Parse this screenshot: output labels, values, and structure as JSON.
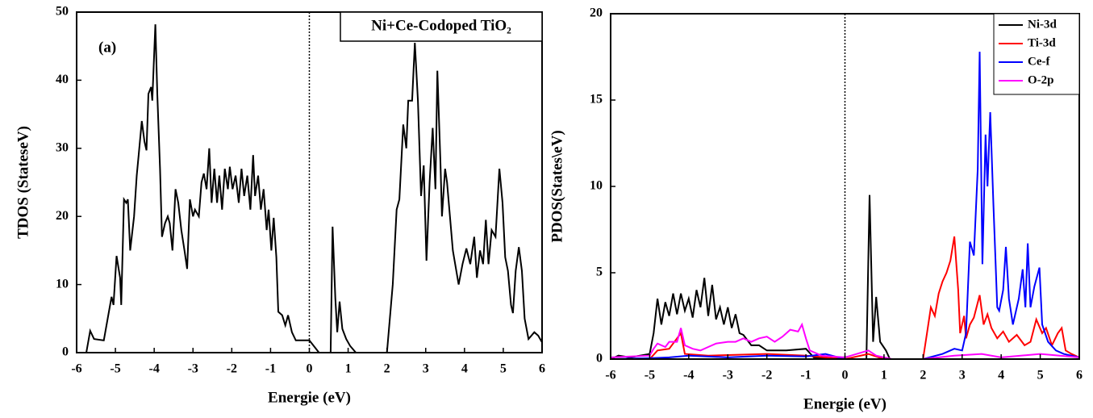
{
  "chart_data": [
    {
      "type": "line",
      "title": "Ni+Ce-Codoped TiO₂",
      "annotation": "(a)",
      "xlabel": "Energie (eV)",
      "ylabel": "TDOS (StateseV)",
      "xlim": [
        -6,
        6
      ],
      "xticks": [
        -6,
        -5,
        -4,
        -3,
        -2,
        -1,
        0,
        1,
        2,
        3,
        4,
        5,
        6
      ],
      "ylim": [
        0,
        50
      ],
      "yticks": [
        0,
        10,
        20,
        30,
        40,
        50
      ],
      "vline": 0,
      "series": [
        {
          "color": "#000000",
          "x": [
            -5.75,
            -5.65,
            -5.55,
            -5.3,
            -5.2,
            -5.1,
            -5.05,
            -4.97,
            -4.88,
            -4.85,
            -4.78,
            -4.72,
            -4.68,
            -4.62,
            -4.52,
            -4.45,
            -4.4,
            -4.32,
            -4.25,
            -4.2,
            -4.15,
            -4.08,
            -4.05,
            -3.97,
            -3.92,
            -3.85,
            -3.8,
            -3.72,
            -3.65,
            -3.6,
            -3.53,
            -3.45,
            -3.38,
            -3.3,
            -3.22,
            -3.15,
            -3.08,
            -3.0,
            -2.95,
            -2.85,
            -2.78,
            -2.72,
            -2.65,
            -2.58,
            -2.52,
            -2.45,
            -2.38,
            -2.32,
            -2.25,
            -2.18,
            -2.1,
            -2.05,
            -1.98,
            -1.9,
            -1.82,
            -1.75,
            -1.68,
            -1.6,
            -1.52,
            -1.45,
            -1.4,
            -1.32,
            -1.25,
            -1.18,
            -1.1,
            -1.05,
            -0.98,
            -0.92,
            -0.85,
            -0.8,
            -0.7,
            -0.62,
            -0.55,
            -0.45,
            -0.35,
            -0.2,
            0.0,
            0.25,
            0.55,
            0.6,
            0.67,
            0.72,
            0.78,
            0.85,
            0.95,
            1.05,
            1.2,
            2.0,
            2.15,
            2.25,
            2.32,
            2.42,
            2.5,
            2.55,
            2.65,
            2.72,
            2.8,
            2.88,
            2.95,
            3.02,
            3.1,
            3.18,
            3.25,
            3.3,
            3.38,
            3.42,
            3.5,
            3.55,
            3.7,
            3.85,
            3.95,
            4.05,
            4.15,
            4.25,
            4.32,
            4.4,
            4.48,
            4.55,
            4.62,
            4.7,
            4.8,
            4.9,
            4.98,
            5.05,
            5.12,
            5.2,
            5.25,
            5.32,
            5.4,
            5.48,
            5.55,
            5.65,
            5.8,
            5.9,
            6.0
          ],
          "values": [
            0,
            3.2,
            2,
            1.8,
            5,
            8.2,
            7,
            14.2,
            11,
            7,
            22.5,
            22,
            22.5,
            15,
            20,
            26,
            29,
            34,
            31,
            29.7,
            38,
            39,
            37,
            48.2,
            38,
            27,
            17,
            19,
            20,
            19,
            15,
            24,
            22,
            18,
            15,
            12.3,
            22.5,
            20,
            21,
            20,
            25,
            26.3,
            24,
            30,
            22,
            27,
            22,
            26,
            21,
            27,
            24,
            27.3,
            24,
            26,
            22,
            27,
            23,
            26,
            21,
            29,
            23,
            26,
            21,
            24,
            18,
            21,
            15,
            19.8,
            14,
            6,
            5.5,
            4,
            5.5,
            3,
            1.8,
            1.8,
            1.8,
            0,
            0,
            18.5,
            8,
            3,
            7.5,
            3.5,
            2,
            1,
            0,
            0,
            10,
            21,
            22.5,
            33.5,
            30,
            37,
            37,
            45.5,
            37,
            23,
            27.5,
            13.5,
            25,
            33,
            24,
            41.4,
            28,
            20,
            27,
            25,
            15,
            10,
            13,
            15.3,
            13,
            17,
            11,
            15,
            13,
            19.5,
            13,
            18,
            17,
            27,
            22,
            14,
            12,
            7,
            5.8,
            12,
            15.5,
            12,
            5,
            2,
            3,
            2.5,
            1.5
          ]
        }
      ]
    },
    {
      "type": "line",
      "xlabel": "Energie (eV)",
      "ylabel": "PDOS(States\\eV)",
      "xlim": [
        -6,
        6
      ],
      "xticks": [
        -6,
        -5,
        -4,
        -3,
        -2,
        -1,
        0,
        1,
        2,
        3,
        4,
        5,
        6
      ],
      "ylim": [
        0,
        20
      ],
      "yticks": [
        0,
        5,
        10,
        15,
        20
      ],
      "vline": 0,
      "legend": "upper right",
      "series": [
        {
          "name": "Ni-3d",
          "color": "#000000",
          "x": [
            -6,
            -5.8,
            -5.5,
            -5.0,
            -4.9,
            -4.8,
            -4.7,
            -4.6,
            -4.5,
            -4.4,
            -4.3,
            -4.2,
            -4.1,
            -4.0,
            -3.9,
            -3.8,
            -3.7,
            -3.6,
            -3.5,
            -3.4,
            -3.3,
            -3.2,
            -3.1,
            -3.0,
            -2.9,
            -2.8,
            -2.7,
            -2.6,
            -2.4,
            -2.2,
            -2.0,
            -1.5,
            -1.0,
            -0.8,
            0,
            0.55,
            0.63,
            0.72,
            0.8,
            0.9,
            1.05,
            1.15,
            6
          ],
          "values": [
            0,
            0.2,
            0.1,
            0.3,
            1.5,
            3.5,
            2.0,
            3.3,
            2.5,
            3.8,
            2.6,
            3.8,
            2.8,
            3.5,
            2.4,
            4.0,
            3.0,
            4.7,
            2.5,
            4.3,
            2.3,
            3.0,
            2.0,
            3.0,
            1.8,
            2.6,
            1.5,
            1.4,
            0.8,
            0.8,
            0.5,
            0.5,
            0.6,
            0.1,
            0,
            0,
            9.5,
            1,
            3.6,
            1,
            0.5,
            0,
            0
          ]
        },
        {
          "name": "Ti-3d",
          "color": "#ff0000",
          "x": [
            -6,
            -5,
            -4.8,
            -4.5,
            -4.2,
            -4.1,
            -3.5,
            -2,
            -1,
            0,
            0.6,
            1,
            2.0,
            2.1,
            2.2,
            2.3,
            2.4,
            2.5,
            2.6,
            2.7,
            2.8,
            2.9,
            2.95,
            3.05,
            3.1,
            3.2,
            3.3,
            3.45,
            3.55,
            3.65,
            3.75,
            3.9,
            4.05,
            4.2,
            4.4,
            4.6,
            4.75,
            4.9,
            5.05,
            5.15,
            5.3,
            5.45,
            5.55,
            5.65,
            5.8,
            6
          ],
          "values": [
            0,
            0,
            0.5,
            0.6,
            1.5,
            0.3,
            0.2,
            0.3,
            0.2,
            0,
            0.3,
            0,
            0,
            1.5,
            3.0,
            2.5,
            3.8,
            4.5,
            5.0,
            5.7,
            7.1,
            4,
            1.5,
            2.5,
            1.2,
            2.0,
            2.4,
            3.7,
            2.0,
            2.6,
            1.8,
            1.2,
            1.6,
            1.0,
            1.4,
            0.8,
            1.0,
            2.3,
            1.5,
            1.8,
            0.8,
            1.5,
            1.8,
            0.5,
            0.3,
            0.1
          ]
        },
        {
          "name": "Ce-f",
          "color": "#0000ff",
          "x": [
            -6,
            -5,
            -4.5,
            -4,
            -3,
            -2,
            -1,
            -0.5,
            0,
            2.0,
            2.5,
            2.8,
            3.0,
            3.1,
            3.2,
            3.3,
            3.4,
            3.45,
            3.52,
            3.6,
            3.65,
            3.72,
            3.8,
            3.9,
            3.95,
            4.05,
            4.12,
            4.2,
            4.3,
            4.45,
            4.55,
            4.62,
            4.68,
            4.75,
            4.85,
            4.98,
            5.05,
            5.2,
            5.4,
            5.6,
            6
          ],
          "values": [
            0,
            0.05,
            0.1,
            0.2,
            0.1,
            0.2,
            0.15,
            0.3,
            0,
            0,
            0.3,
            0.6,
            0.5,
            1.5,
            6.8,
            6.0,
            11,
            17.8,
            5.5,
            13,
            10,
            14.3,
            9,
            3,
            2.8,
            4,
            6.5,
            3.5,
            2.0,
            3.5,
            5.2,
            3.0,
            6.7,
            3.0,
            4.2,
            5.3,
            2.0,
            1.0,
            0.5,
            0.3,
            0.1
          ]
        },
        {
          "name": "O-2p",
          "color": "#ff00ff",
          "x": [
            -6,
            -5,
            -4.9,
            -4.8,
            -4.6,
            -4.5,
            -4.3,
            -4.2,
            -4.1,
            -3.9,
            -3.7,
            -3.5,
            -3.3,
            -3.0,
            -2.8,
            -2.6,
            -2.4,
            -2.2,
            -2.0,
            -1.8,
            -1.6,
            -1.4,
            -1.2,
            -1.1,
            -1.0,
            -0.9,
            -0.6,
            0,
            0.6,
            0.8,
            1.2,
            2,
            2.8,
            3.5,
            4.0,
            5.0,
            6
          ],
          "values": [
            0.1,
            0.2,
            0.6,
            0.9,
            0.7,
            1.0,
            1.0,
            1.8,
            0.8,
            0.6,
            0.5,
            0.7,
            0.9,
            1.0,
            1.0,
            1.2,
            1.0,
            1.2,
            1.3,
            1.0,
            1.3,
            1.7,
            1.6,
            2.0,
            1.2,
            0.5,
            0.2,
            0.1,
            0.5,
            0.2,
            0,
            0,
            0.2,
            0.3,
            0.1,
            0.3,
            0.1
          ]
        }
      ]
    }
  ]
}
